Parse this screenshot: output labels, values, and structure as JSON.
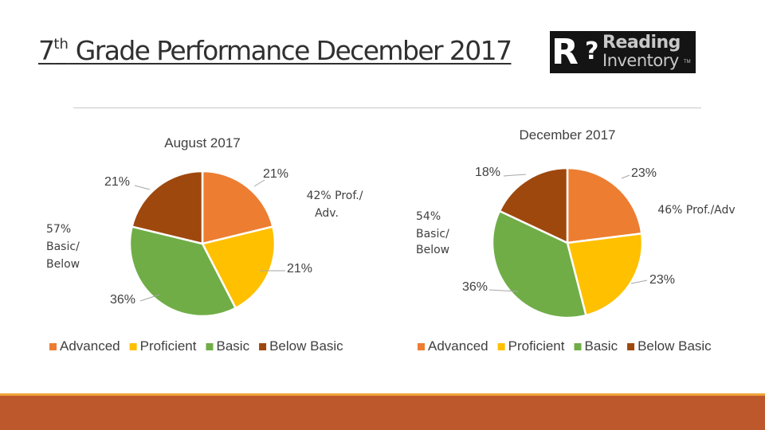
{
  "page": {
    "title_prefix": "7",
    "title_sup": "th",
    "title_rest": " Grade  Performance December 2017",
    "logo": {
      "line1": "Reading",
      "line2": "Inventory",
      "tm": "TM"
    }
  },
  "colors": {
    "Advanced": "#ed7d31",
    "Proficient": "#ffc000",
    "Basic": "#70ad47",
    "Below Basic": "#9e480e",
    "footer": "#bd582c",
    "footer_accent": "#f0a33a"
  },
  "chart_data": [
    {
      "type": "pie",
      "title": "August 2017",
      "categories": [
        "Advanced",
        "Proficient",
        "Basic",
        "Below Basic"
      ],
      "values": [
        21,
        21,
        36,
        21
      ],
      "value_labels": [
        "21%",
        "21%",
        "36%",
        "21%"
      ],
      "legend": [
        "Advanced",
        "Proficient",
        "Basic",
        "Below Basic"
      ],
      "legend_position": "bottom",
      "annotations": [
        "42% Prof./ Adv.",
        "57% Basic/ Below"
      ]
    },
    {
      "type": "pie",
      "title": "December 2017",
      "categories": [
        "Advanced",
        "Proficient",
        "Basic",
        "Below Basic"
      ],
      "values": [
        23,
        23,
        36,
        18
      ],
      "value_labels": [
        "23%",
        "23%",
        "36%",
        "18%"
      ],
      "legend": [
        "Advanced",
        "Proficient",
        "Basic",
        "Below Basic"
      ],
      "legend_position": "bottom",
      "annotations": [
        "46% Prof./Adv",
        "54% Basic/ Below"
      ]
    }
  ]
}
